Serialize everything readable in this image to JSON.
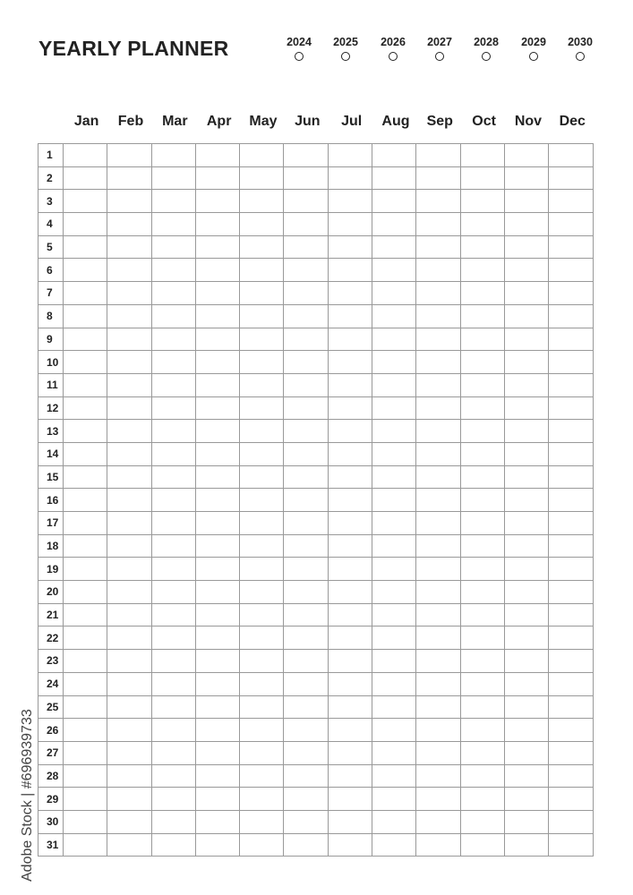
{
  "title": "YEARLY PLANNER",
  "years": [
    "2024",
    "2025",
    "2026",
    "2027",
    "2028",
    "2029",
    "2030"
  ],
  "months": [
    "Jan",
    "Feb",
    "Mar",
    "Apr",
    "May",
    "Jun",
    "Jul",
    "Aug",
    "Sep",
    "Oct",
    "Nov",
    "Dec"
  ],
  "days": [
    "1",
    "2",
    "3",
    "4",
    "5",
    "6",
    "7",
    "8",
    "9",
    "10",
    "11",
    "12",
    "13",
    "14",
    "15",
    "16",
    "17",
    "18",
    "19",
    "20",
    "21",
    "22",
    "23",
    "24",
    "25",
    "26",
    "27",
    "28",
    "29",
    "30",
    "31"
  ],
  "watermark": "Adobe Stock | #696939733"
}
